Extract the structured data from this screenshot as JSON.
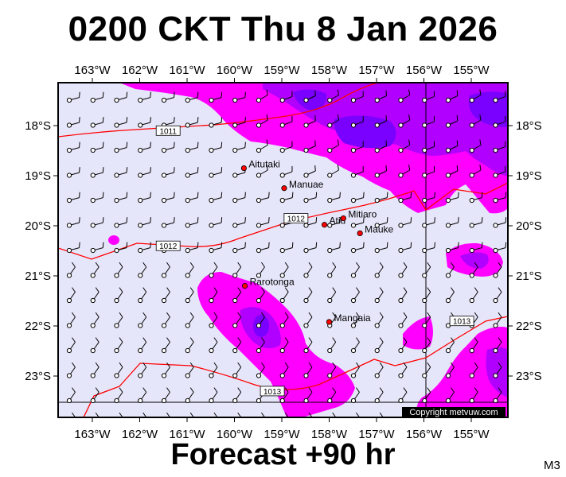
{
  "title": "0200 CKT Thu 8 Jan 2026",
  "footer": "Forecast +90 hr",
  "code": "M3",
  "copyright": "Copyright metvuw.com",
  "lon_labels": [
    "163°W",
    "162°W",
    "161°W",
    "160°W",
    "159°W",
    "158°W",
    "157°W",
    "156°W",
    "155°W"
  ],
  "lat_labels": [
    "18°S",
    "19°S",
    "20°S",
    "21°S",
    "22°S",
    "23°S"
  ],
  "places": [
    {
      "name": "Aitutaki",
      "lon": -159.8,
      "lat": -18.85
    },
    {
      "name": "Manuae",
      "lon": -158.95,
      "lat": -19.25
    },
    {
      "name": "Atiu",
      "lon": -158.1,
      "lat": -19.98
    },
    {
      "name": "Mitiaro",
      "lon": -157.7,
      "lat": -19.85
    },
    {
      "name": "Mauke",
      "lon": -157.35,
      "lat": -20.15
    },
    {
      "name": "Rarotonga",
      "lon": -159.78,
      "lat": -21.2
    },
    {
      "name": "Mangaia",
      "lon": -158.0,
      "lat": -21.92
    }
  ],
  "isobars": [
    {
      "label": "1011",
      "label_lon": -161.4,
      "label_lat": -18.1
    },
    {
      "label": "1012",
      "label_lon": -161.4,
      "label_lat": -20.4
    },
    {
      "label": "1012",
      "label_lon": -158.7,
      "label_lat": -19.85
    },
    {
      "label": "1013",
      "label_lon": -159.2,
      "label_lat": -23.3
    },
    {
      "label": "1013",
      "label_lon": -155.2,
      "label_lat": -21.9
    }
  ],
  "colors": {
    "background": "#e6e6fa",
    "rain_light": "#ff00ff",
    "rain_medium": "#b100ff",
    "rain_heavy": "#7a00ff",
    "isobar": "#ff0000",
    "island": "#ff0000"
  }
}
